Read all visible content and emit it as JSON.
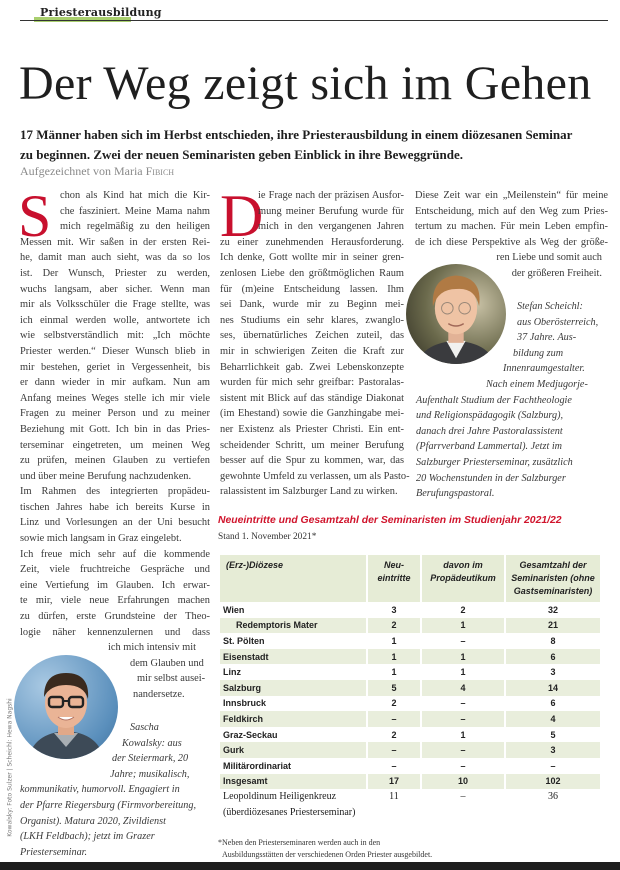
{
  "header": {
    "section": "Priesterausbildung",
    "accent_color": "#a9cf6e"
  },
  "article": {
    "title": "Der Weg zeigt sich im Gehen",
    "deck": "17 Männer haben sich im Herbst entschieden, ihre Priesterausbildung in einem diözesanen Seminar zu beginnen. Zwei der neuen Seminaristen geben Einblick in ihre Beweggründe.",
    "byline_prefix": "Aufgezeichnet von Maria",
    "byline_name": "Fibich",
    "dropcap_color": "#c8102e"
  },
  "col1": {
    "dropcap": "S",
    "lines": [
      "chon als Kind hat mich die Kir-",
      "che fasziniert. Meine Mama nahm",
      "mich regelmäßig zu den heiligen",
      "Messen mit. Wir saßen in der ersten Rei-",
      "he, damit man auch sieht, was da so los",
      "ist. Der Wunsch, Priester zu werden,",
      "wuchs langsam, aber sicher. Wenn man",
      "mir als Volksschüler die Frage stellte, was",
      "ich einmal werden wolle, antwortete ich",
      "wie selbstverständlich mit: „Ich möchte",
      "Priester werden.“ Dieser Wunsch blieb in",
      "mir bestehen, geriet in Vergessenheit, bis",
      "er dann wieder in mir aufkam. Nun am",
      "Anfang meines Weges stelle ich mir viele",
      "Fragen zu meiner Person und zu meiner",
      "Beziehung mit Gott. Ich bin in das Pries-",
      "terseminar eingetreten, um meinen Weg",
      "zu prüfen, meinen Glauben zu vertiefen",
      "und über meine Berufung nachzudenken.",
      "Im Rahmen des integrierten propädeu-",
      "tischen Jahres habe ich bereits Kurse in",
      "Linz und Vorlesungen an der Uni besucht",
      "sowie mich langsam in Graz eingelebt.",
      "Ich freue mich sehr auf die kommende",
      "Zeit, viele fruchtreiche Gespräche und",
      "eine Vertiefung im Glauben. Ich erwar-",
      "te mir, viele neue Erfahrungen machen",
      "zu dürfen, erste Grundsteine der Theo-",
      "logie näher kennenzulernen und dass",
      "ich mich intensiv mit",
      "dem Glauben und",
      "mir selbst ausei-",
      "nandersetze."
    ],
    "caption": [
      "Sascha",
      "Kowalsky: aus",
      "der Steiermark, 20",
      "Jahre; musikalisch,",
      "kommunikativ, humorvoll. Engagiert in",
      "der Pfarre Riegersburg (Firmvorbereitung,",
      "Organist). Matura 2020, Zivildienst",
      "(LKH Feldbach); jetzt im Grazer",
      "Priesterseminar."
    ]
  },
  "col2": {
    "dropcap": "D",
    "lines": [
      "ie Frage nach der präzisen Ausfor-",
      "mung meiner Berufung wurde für",
      "mich in den vergangenen Jahren",
      "zu einer zunehmenden Herausforderung.",
      "Ich denke, Gott wollte mir in seiner gren-",
      "zenlosen Liebe den größtmöglichen Raum",
      "für (m)eine Entscheidung lassen. Ihm",
      "sei Dank, wurde mir zu Beginn mei-",
      "nes Studiums ein sehr klares, zwanglo-",
      "ses, übernatürliches Zeichen zuteil, das",
      "mir in schwierigen Zeiten die Kraft zur",
      "Beharrlichkeit gab. Zwei Lebenskonzepte",
      "wurden für mich sehr greifbar: Pastoralas-",
      "sistent mit Blick auf das ständige Diakonat",
      "(im Ehestand) sowie die Ganzhingabe mei-",
      "ner Existenz als Priester Christi. Ein ent-",
      "scheidender Schritt, um meiner Berufung",
      "besser auf die Spur zu kommen, war, das",
      "gewohnte Umfeld zu verlassen, um als Pasto-",
      "ralassistent im Salzburger Land zu wirken."
    ]
  },
  "col3": {
    "lines": [
      "Diese Zeit war ein „Meilenstein“ für meine",
      "Entscheidung, mich auf den Weg zum Pries-",
      "tertum zu machen. Für mein Leben empfin-",
      "de ich diese Perspektive als Weg der größe-",
      "ren Liebe und somit auch",
      "der größeren Freiheit."
    ],
    "caption": [
      "Stefan Scheichl:",
      "aus Oberösterreich,",
      "37 Jahre. Aus-",
      "bildung zum",
      "Innenraumgestalter.",
      "Nach einem Medjugorje-",
      "Aufenthalt Studium der Fachtheologie",
      "und Religionspädagogik (Salzburg),",
      "danach drei Jahre Pastoralassistent",
      "(Pfarrverband Lammertal). Jetzt im",
      "Salzburger Priesterseminar, zusätzlich",
      "20 Wochenstunden in der Salzburger",
      "Berufungspastoral."
    ]
  },
  "photo_credit": "Kowalsky: Foto Sulzer | Scheichl: Hewa Nagshi",
  "table": {
    "title": "Neueintritte und Gesamtzahl der Seminaristen im Studienjahr 2021/22",
    "subtitle": "Stand 1. November 2021*",
    "title_color": "#d0142c",
    "headers": [
      "(Erz-)Diözese",
      "Neu-\neintritte",
      "davon im\nPropädeutikum",
      "Gesamtzahl der\nSeminaristen (ohne\nGastseminaristen)"
    ],
    "rows": [
      [
        "Wien",
        "3",
        "2",
        "32"
      ],
      [
        "Redemptoris Mater",
        "2",
        "1",
        "21"
      ],
      [
        "St. Pölten",
        "1",
        "–",
        "8"
      ],
      [
        "Eisenstadt",
        "1",
        "1",
        "6"
      ],
      [
        "Linz",
        "1",
        "1",
        "3"
      ],
      [
        "Salzburg",
        "5",
        "4",
        "14"
      ],
      [
        "Innsbruck",
        "2",
        "–",
        "6"
      ],
      [
        "Feldkirch",
        "–",
        "–",
        "4"
      ],
      [
        "Graz-Seckau",
        "2",
        "1",
        "5"
      ],
      [
        "Gurk",
        "–",
        "–",
        "3"
      ],
      [
        "Militärordinariat",
        "–",
        "–",
        "–"
      ],
      [
        "Insgesamt",
        "17",
        "10",
        "102"
      ],
      [
        "Leopoldinum Heiligenkreuz",
        "11",
        "–",
        "36"
      ],
      [
        "(überdiözesanes Priesterseminar)",
        "",
        "",
        ""
      ]
    ],
    "footnote_1": "*Neben den Priesterseminaren werden auch in den",
    "footnote_2": "Ausbildungsstätten der verschiedenen Orden Priester ausgebildet."
  }
}
